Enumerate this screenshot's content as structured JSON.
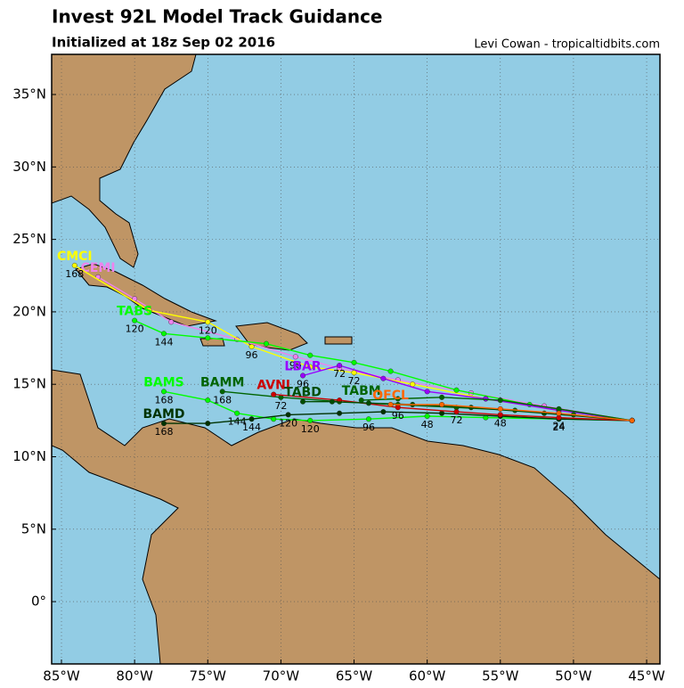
{
  "chart_data": {
    "type": "track-map",
    "title": "Invest 92L Model Track Guidance",
    "subtitle": "Initialized at 18z Sep 02 2016",
    "credit": "Levi Cowan - tropicaltidbits.com",
    "xlim": [
      -85.67,
      -44.09
    ],
    "ylim": [
      -4.3,
      37.77
    ],
    "grid": true,
    "xticks": [
      {
        "value": -85,
        "label": "85°W"
      },
      {
        "value": -80,
        "label": "80°W"
      },
      {
        "value": -75,
        "label": "75°W"
      },
      {
        "value": -70,
        "label": "70°W"
      },
      {
        "value": -65,
        "label": "65°W"
      },
      {
        "value": -60,
        "label": "60°W"
      },
      {
        "value": -55,
        "label": "55°W"
      },
      {
        "value": -50,
        "label": "50°W"
      },
      {
        "value": -45,
        "label": "45°W"
      }
    ],
    "yticks": [
      {
        "value": 0,
        "label": "0°"
      },
      {
        "value": 5,
        "label": "5°N"
      },
      {
        "value": 10,
        "label": "10°N"
      },
      {
        "value": 15,
        "label": "15°N"
      },
      {
        "value": 20,
        "label": "20°N"
      },
      {
        "value": 25,
        "label": "25°N"
      },
      {
        "value": 30,
        "label": "30°N"
      },
      {
        "value": 35,
        "label": "35°N"
      }
    ],
    "series": [
      {
        "name": "CEMI",
        "color": "#ee82ee",
        "x": [
          -46,
          -52,
          -57,
          -62,
          -66,
          -69,
          -73,
          -77.5,
          -80,
          -82.5
        ],
        "values": [
          12.5,
          13.5,
          14.4,
          15.3,
          16.1,
          16.9,
          18.1,
          19.3,
          20.9,
          22.4
        ],
        "hours": [
          null,
          null,
          null,
          null,
          null,
          96,
          null,
          null,
          null,
          null
        ]
      },
      {
        "name": "CMCI",
        "color": "#ffff00",
        "x": [
          -46,
          -51,
          -56,
          -61,
          -65,
          -68,
          -72,
          -75,
          -79,
          -84.1
        ],
        "values": [
          12.5,
          13.2,
          14.0,
          15.0,
          15.8,
          16.2,
          17.6,
          19.3,
          20.1,
          23.2
        ],
        "hours": [
          null,
          null,
          null,
          null,
          72,
          null,
          96,
          120,
          null,
          168
        ]
      },
      {
        "name": "TABS",
        "color": "#00ff00",
        "x": [
          -46,
          -53,
          -58,
          -62.5,
          -65,
          -68,
          -71,
          -75,
          -78,
          -80
        ],
        "values": [
          12.5,
          13.6,
          14.6,
          15.9,
          16.5,
          17.0,
          17.8,
          18.2,
          18.5,
          19.4
        ],
        "hours": [
          null,
          null,
          null,
          null,
          null,
          null,
          null,
          null,
          144,
          120
        ]
      },
      {
        "name": "LBAR",
        "color": "#9900ff",
        "x": [
          -46,
          -51,
          -56,
          -60,
          -63,
          -66,
          -68.5
        ],
        "values": [
          12.5,
          13.2,
          14.0,
          14.5,
          15.4,
          16.3,
          15.6
        ],
        "hours": [
          null,
          null,
          null,
          null,
          null,
          72,
          96
        ]
      },
      {
        "name": "BAMS",
        "color": "#00ff00",
        "x": [
          -46,
          -51,
          -56,
          -60,
          -64,
          -68,
          -70.5,
          -73,
          -75,
          -78
        ],
        "values": [
          12.5,
          12.6,
          12.7,
          12.8,
          12.6,
          12.5,
          12.6,
          13.0,
          13.9,
          14.5
        ],
        "hours": [
          null,
          24,
          null,
          48,
          96,
          120,
          null,
          144,
          null,
          168
        ]
      },
      {
        "name": "BAMM",
        "color": "#006400",
        "x": [
          -46,
          -50,
          -54,
          -58,
          -62,
          -66,
          -70,
          -74
        ],
        "values": [
          12.5,
          12.9,
          13.2,
          13.4,
          13.6,
          13.8,
          14.1,
          14.5
        ],
        "hours": [
          null,
          null,
          null,
          null,
          null,
          null,
          72,
          168
        ]
      },
      {
        "name": "BAMD",
        "color": "#003300",
        "x": [
          -46,
          -51,
          -55,
          -59,
          -63,
          -66,
          -69.5,
          -72,
          -75,
          -78
        ],
        "values": [
          12.5,
          12.6,
          12.8,
          13.0,
          13.1,
          13.0,
          12.9,
          12.6,
          12.3,
          12.3
        ],
        "hours": [
          null,
          null,
          null,
          null,
          null,
          null,
          120,
          144,
          null,
          168
        ]
      },
      {
        "name": "AVNI",
        "color": "#cc0000",
        "x": [
          -46,
          -51,
          -55,
          -58,
          -62,
          -66,
          -70.5
        ],
        "values": [
          12.5,
          12.7,
          12.9,
          13.1,
          13.4,
          13.9,
          14.3
        ],
        "hours": [
          null,
          24,
          48,
          72,
          96,
          null,
          null
        ]
      },
      {
        "name": "TABD",
        "color": "#004d00",
        "x": [
          -46,
          -52,
          -57,
          -61,
          -64,
          -66.5,
          -68.5
        ],
        "values": [
          12.5,
          13.0,
          13.4,
          13.6,
          13.7,
          13.8,
          13.8
        ],
        "hours": [
          null,
          null,
          null,
          null,
          null,
          null,
          null
        ]
      },
      {
        "name": "TABM",
        "color": "#006400",
        "x": [
          -46,
          -51,
          -55,
          -59,
          -62,
          -64.5
        ],
        "values": [
          12.5,
          13.3,
          13.9,
          14.1,
          14.0,
          13.9
        ],
        "hours": [
          null,
          null,
          null,
          null,
          null,
          null
        ]
      },
      {
        "name": "OFCL",
        "color": "#ff6600",
        "x": [
          -46,
          -51,
          -55,
          -59,
          -62.5
        ],
        "values": [
          12.5,
          13.0,
          13.3,
          13.6,
          13.6
        ],
        "hours": [
          null,
          null,
          null,
          null,
          null
        ]
      }
    ]
  }
}
